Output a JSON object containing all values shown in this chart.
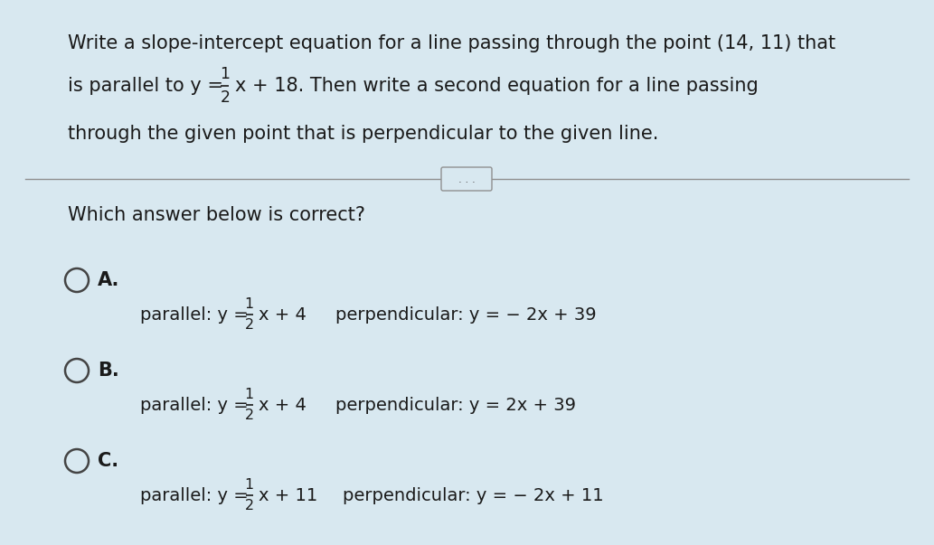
{
  "bg_color": "#d8e8f0",
  "text_color": "#1a1a1a",
  "figsize": [
    10.33,
    6.03
  ],
  "dpi": 100,
  "question_line1": "Write a slope-intercept equation for a line passing through the point (14, 11) that",
  "question_line2_pre": "is parallel to y = ",
  "question_line2_rest": "x + 18. Then write a second equation for a line passing",
  "question_line3": "through the given point that is perpendicular to the given line.",
  "subquestion": "Which answer below is correct?",
  "options": [
    {
      "label": "A.",
      "parallel_pre": "parallel: y = ",
      "parallel_post": "x + 4",
      "perpendicular": "perpendicular: y = − 2x + 39"
    },
    {
      "label": "B.",
      "parallel_pre": "parallel: y = ",
      "parallel_post": "x + 4",
      "perpendicular": "perpendicular: y = 2x + 39"
    },
    {
      "label": "C.",
      "parallel_pre": "parallel: y = ",
      "parallel_post": "x + 11",
      "perpendicular": "perpendicular: y = − 2x + 11"
    }
  ],
  "font_size_main": 15,
  "font_size_option": 14,
  "font_size_label": 15
}
